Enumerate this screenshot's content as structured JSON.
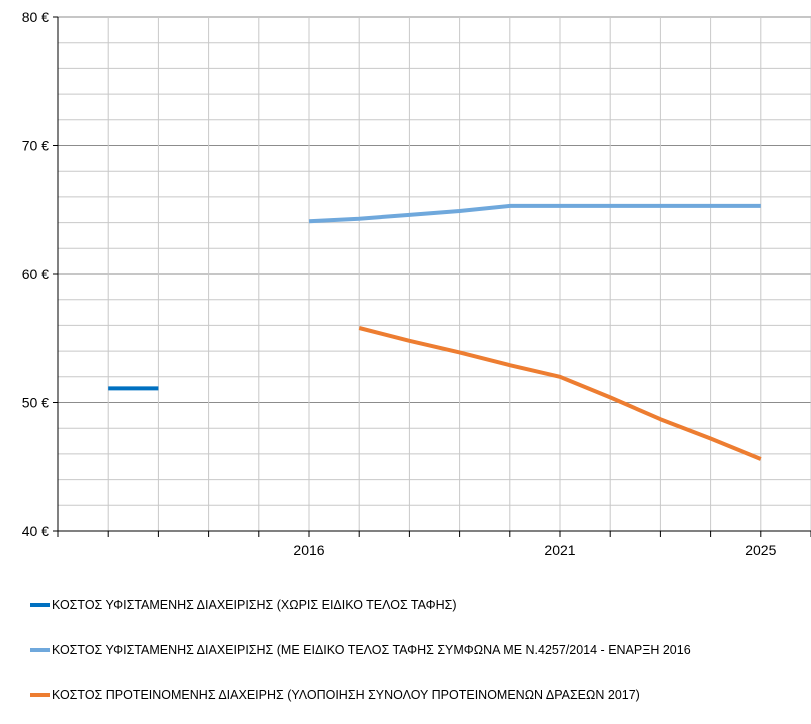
{
  "chart_data": {
    "type": "line",
    "x_ticks": [
      2016,
      2021,
      2025
    ],
    "x_range": [
      2011,
      2026
    ],
    "ylim": [
      40,
      80
    ],
    "y_ticks": [
      40,
      50,
      60,
      70,
      80
    ],
    "y_tick_labels": [
      "40 €",
      "50 €",
      "60 €",
      "70 €",
      "80 €"
    ],
    "grid": true,
    "legend_position": "bottom",
    "series": [
      {
        "name": "ΚΟΣΤΟΣ ΥΦΙΣΤΑΜΕΝΗΣ ΔΙΑΧΕΙΡΙΣΗΣ (ΧΩΡΙΣ ΕΙΔΙΚΟ ΤΕΛΟΣ ΤΑΦΗΣ)",
        "color": "#0070C0",
        "points": [
          [
            2012,
            51.1
          ],
          [
            2013,
            51.1
          ]
        ]
      },
      {
        "name": "ΚΟΣΤΟΣ ΥΦΙΣΤΑΜΕΝΗΣ ΔΙΑΧΕΙΡΙΣΗΣ (ΜΕ ΕΙΔΙΚΟ ΤΕΛΟΣ ΤΑΦΗΣ ΣΥΜΦΩΝΑ ΜΕ Ν.4257/2014 - ΕΝΑΡΞΗ 2016",
        "color": "#6FA8DC",
        "points": [
          [
            2016,
            64.1
          ],
          [
            2017,
            64.3
          ],
          [
            2018,
            64.6
          ],
          [
            2019,
            64.9
          ],
          [
            2020,
            65.3
          ],
          [
            2021,
            65.3
          ],
          [
            2022,
            65.3
          ],
          [
            2023,
            65.3
          ],
          [
            2024,
            65.3
          ],
          [
            2025,
            65.3
          ]
        ]
      },
      {
        "name": "ΚΟΣΤΟΣ ΠΡΟΤΕΙΝΟΜΕΝΗΣ ΔΙΑΧΕΙΡΗΣ (ΥΛΟΠΟΙΗΣΗ ΣΥΝΟΛΟΥ ΠΡΟΤΕΙΝΟΜΕΝΩΝ ΔΡΑΣΕΩΝ 2017)",
        "color": "#ED7D31",
        "points": [
          [
            2017,
            55.8
          ],
          [
            2018,
            54.8
          ],
          [
            2019,
            53.9
          ],
          [
            2020,
            52.9
          ],
          [
            2021,
            52.0
          ],
          [
            2022,
            50.4
          ],
          [
            2023,
            48.7
          ],
          [
            2024,
            47.2
          ],
          [
            2025,
            45.6
          ]
        ]
      }
    ]
  }
}
